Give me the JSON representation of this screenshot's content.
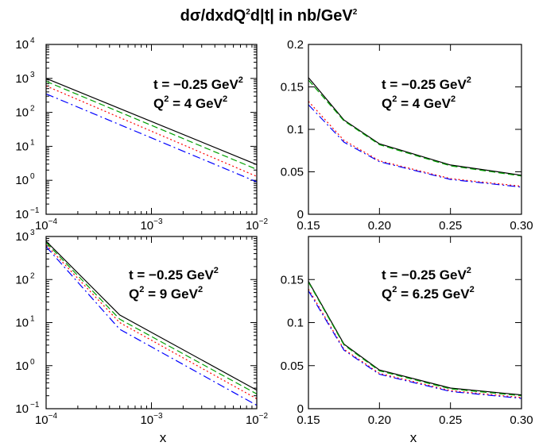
{
  "title": {
    "pre": "d",
    "sigma": "σ",
    "mid1": "/dxdQ",
    "sup1": "2",
    "mid2": "d|t| in nb/GeV",
    "sup2": "2"
  },
  "xlabel": "x",
  "chart_data": [
    {
      "type": "line",
      "panel": "top-left",
      "xscale": "log",
      "yscale": "log",
      "xlim": [
        0.0001,
        0.01
      ],
      "ylim": [
        0.1,
        10000
      ],
      "xticks": [
        {
          "base": "10",
          "exp": "−4"
        },
        {
          "base": "10",
          "exp": "−3"
        },
        {
          "base": "10",
          "exp": "−2"
        }
      ],
      "yticks": [
        {
          "base": "10",
          "exp": "−1"
        },
        {
          "base": "10",
          "exp": "0"
        },
        {
          "base": "10",
          "exp": "1"
        },
        {
          "base": "10",
          "exp": "2"
        },
        {
          "base": "10",
          "exp": "3"
        },
        {
          "base": "10",
          "exp": "4"
        }
      ],
      "annotation": {
        "t_label": "t = −0.25 GeV",
        "t_sup": "2",
        "q_pre": "Q",
        "q_sup": "2",
        "q_label": " = 4 GeV",
        "q_sup2": "2"
      },
      "series": [
        {
          "color": "#000000",
          "dash": "",
          "x": [
            0.0001,
            0.01
          ],
          "y": [
            1000,
            2.9
          ]
        },
        {
          "color": "#00a000",
          "dash": "8,4",
          "x": [
            0.0001,
            0.01
          ],
          "y": [
            820,
            2.1
          ]
        },
        {
          "color": "#ff0000",
          "dash": "2,3",
          "x": [
            0.0001,
            0.01
          ],
          "y": [
            600,
            1.3
          ]
        },
        {
          "color": "#0000ff",
          "dash": "10,4,2,4",
          "x": [
            0.0001,
            0.01
          ],
          "y": [
            350,
            0.9
          ]
        }
      ]
    },
    {
      "type": "line",
      "panel": "top-right",
      "xscale": "linear",
      "yscale": "linear",
      "xlim": [
        0.15,
        0.3
      ],
      "ylim": [
        0,
        0.2
      ],
      "xtick_values": [
        0.15,
        0.2,
        0.25,
        0.3
      ],
      "xticks": [
        {
          "base": "0.15"
        },
        {
          "base": "0.20"
        },
        {
          "base": "0.25"
        },
        {
          "base": "0.30"
        }
      ],
      "ytick_values": [
        0,
        0.05,
        0.1,
        0.15,
        0.2
      ],
      "yticks": [
        {
          "base": "0"
        },
        {
          "base": "0.05"
        },
        {
          "base": "0.1"
        },
        {
          "base": "0.15"
        },
        {
          "base": "0.2"
        }
      ],
      "annotation": {
        "t_label": "t = −0.25 GeV",
        "t_sup": "2",
        "q_pre": "Q",
        "q_sup": "2",
        "q_label": " = 4 GeV",
        "q_sup2": "2"
      },
      "series": [
        {
          "color": "#000000",
          "dash": "",
          "x": [
            0.15,
            0.175,
            0.2,
            0.25,
            0.3
          ],
          "y": [
            0.161,
            0.111,
            0.083,
            0.058,
            0.046
          ]
        },
        {
          "color": "#00a000",
          "dash": "8,4",
          "x": [
            0.15,
            0.175,
            0.2,
            0.25,
            0.3
          ],
          "y": [
            0.158,
            0.11,
            0.082,
            0.057,
            0.045
          ]
        },
        {
          "color": "#ff0000",
          "dash": "2,3",
          "x": [
            0.15,
            0.175,
            0.2,
            0.25,
            0.3
          ],
          "y": [
            0.133,
            0.087,
            0.063,
            0.042,
            0.033
          ]
        },
        {
          "color": "#0000ff",
          "dash": "10,4,2,4",
          "x": [
            0.15,
            0.175,
            0.2,
            0.25,
            0.3
          ],
          "y": [
            0.129,
            0.085,
            0.062,
            0.041,
            0.032
          ]
        }
      ]
    },
    {
      "type": "line",
      "panel": "bottom-left",
      "xscale": "log",
      "yscale": "log",
      "xlim": [
        0.0001,
        0.01
      ],
      "ylim": [
        0.1,
        1000
      ],
      "xticks": [
        {
          "base": "10",
          "exp": "−4"
        },
        {
          "base": "10",
          "exp": "−3"
        },
        {
          "base": "10",
          "exp": "−2"
        }
      ],
      "yticks": [
        {
          "base": "10",
          "exp": "−1"
        },
        {
          "base": "10",
          "exp": "0"
        },
        {
          "base": "10",
          "exp": "1"
        },
        {
          "base": "10",
          "exp": "2"
        },
        {
          "base": "10",
          "exp": "3"
        }
      ],
      "annotation": {
        "t_label": "t = −0.25 GeV",
        "t_sup": "2",
        "q_pre": "Q",
        "q_sup": "2",
        "q_label": " = 9 GeV",
        "q_sup2": "2"
      },
      "series": [
        {
          "color": "#000000",
          "dash": "",
          "x": [
            0.0001,
            0.0005,
            0.01
          ],
          "y": [
            780,
            15,
            0.27
          ]
        },
        {
          "color": "#00a000",
          "dash": "8,4",
          "x": [
            0.0001,
            0.0005,
            0.01
          ],
          "y": [
            720,
            12,
            0.22
          ]
        },
        {
          "color": "#ff0000",
          "dash": "2,3",
          "x": [
            0.0001,
            0.0005,
            0.01
          ],
          "y": [
            640,
            10,
            0.17
          ]
        },
        {
          "color": "#0000ff",
          "dash": "10,4,2,4",
          "x": [
            0.0001,
            0.0005,
            0.01
          ],
          "y": [
            580,
            7,
            0.12
          ]
        }
      ]
    },
    {
      "type": "line",
      "panel": "bottom-right",
      "xscale": "linear",
      "yscale": "linear",
      "xlim": [
        0.15,
        0.3
      ],
      "ylim": [
        0,
        0.2
      ],
      "xtick_values": [
        0.15,
        0.2,
        0.25,
        0.3
      ],
      "xticks": [
        {
          "base": "0.15"
        },
        {
          "base": "0.20"
        },
        {
          "base": "0.25"
        },
        {
          "base": "0.30"
        }
      ],
      "ytick_values": [
        0,
        0.05,
        0.1,
        0.15
      ],
      "yticks": [
        {
          "base": "0"
        },
        {
          "base": "0.05"
        },
        {
          "base": "0.1"
        },
        {
          "base": "0.15"
        }
      ],
      "annotation": {
        "t_label": "t = −0.25 GeV",
        "t_sup": "2",
        "q_pre": "Q",
        "q_sup": "2",
        "q_label": " = 6.25 GeV",
        "q_sup2": "2"
      },
      "series": [
        {
          "color": "#000000",
          "dash": "",
          "x": [
            0.15,
            0.175,
            0.2,
            0.25,
            0.3
          ],
          "y": [
            0.148,
            0.075,
            0.045,
            0.024,
            0.016
          ]
        },
        {
          "color": "#00a000",
          "dash": "8,4",
          "x": [
            0.15,
            0.175,
            0.2,
            0.25,
            0.3
          ],
          "y": [
            0.147,
            0.074,
            0.044,
            0.023,
            0.015
          ]
        },
        {
          "color": "#ff0000",
          "dash": "2,3",
          "x": [
            0.15,
            0.175,
            0.2,
            0.25,
            0.3
          ],
          "y": [
            0.139,
            0.069,
            0.041,
            0.021,
            0.013
          ]
        },
        {
          "color": "#0000ff",
          "dash": "10,4,2,4",
          "x": [
            0.15,
            0.175,
            0.2,
            0.25,
            0.3
          ],
          "y": [
            0.137,
            0.068,
            0.04,
            0.02,
            0.012
          ]
        }
      ]
    }
  ]
}
